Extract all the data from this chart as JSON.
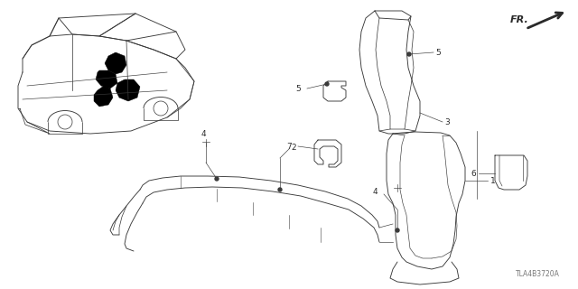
{
  "bg_color": "#ffffff",
  "diagram_code": "TLA4B3720A",
  "fr_label": "FR.",
  "line_color": "#3a3a3a",
  "text_color": "#2a2a2a",
  "font_size_label": 6.5,
  "font_size_code": 5.5,
  "font_size_fr": 8,
  "lw_main": 0.65,
  "lw_thick": 1.0
}
